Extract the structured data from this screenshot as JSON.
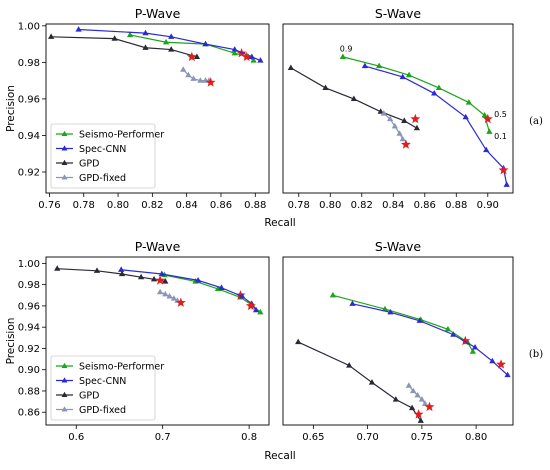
{
  "figure": {
    "panel_labels": {
      "top": "(a)",
      "bottom": "(b)"
    }
  },
  "series_styles": [
    {
      "name": "Seismo-Performer",
      "color": "#1aa51a",
      "marker": "triangle"
    },
    {
      "name": "Spec-CNN",
      "color": "#2b2bd1",
      "marker": "triangle"
    },
    {
      "name": "GPD",
      "color": "#2a2a36",
      "marker": "triangle"
    },
    {
      "name": "GPD-fixed",
      "color": "#8a95b8",
      "marker": "triangle"
    }
  ],
  "highlight": {
    "marker": "star",
    "color": "#e21d1d"
  },
  "chart_data": [
    {
      "id": "a-p",
      "type": "line",
      "title": "P-Wave",
      "xlabel": "",
      "ylabel": "Precision",
      "xlim": [
        0.758,
        0.888
      ],
      "ylim": [
        0.9085,
        1.001
      ],
      "xticks": [
        "0.76",
        "0.78",
        "0.80",
        "0.82",
        "0.84",
        "0.86",
        "0.88"
      ],
      "xtick_values": [
        0.76,
        0.78,
        0.8,
        0.82,
        0.84,
        0.86,
        0.88
      ],
      "yticks": [
        "0.92",
        "0.94",
        "0.96",
        "0.98",
        "1.00"
      ],
      "ytick_values": [
        0.92,
        0.94,
        0.96,
        0.98,
        1.0
      ],
      "legend": null,
      "series": [
        {
          "name": "Seismo-Performer",
          "x": [
            0.807,
            0.828,
            0.851,
            0.868,
            0.876,
            0.879
          ],
          "y": [
            0.995,
            0.991,
            0.99,
            0.985,
            0.983,
            0.981
          ],
          "highlight_x": 0.872,
          "highlight_y": 0.985
        },
        {
          "name": "Spec-CNN",
          "x": [
            0.777,
            0.816,
            0.831,
            0.851,
            0.868,
            0.878,
            0.883
          ],
          "y": [
            0.998,
            0.996,
            0.994,
            0.99,
            0.987,
            0.983,
            0.981
          ],
          "highlight_x": 0.875,
          "highlight_y": 0.983
        },
        {
          "name": "GPD",
          "x": [
            0.761,
            0.798,
            0.816,
            0.831,
            0.846
          ],
          "y": [
            0.994,
            0.993,
            0.988,
            0.987,
            0.983
          ],
          "highlight_x": 0.843,
          "highlight_y": 0.983
        },
        {
          "name": "GPD-fixed",
          "x": [
            0.838,
            0.841,
            0.844,
            0.848,
            0.851,
            0.853
          ],
          "y": [
            0.976,
            0.973,
            0.971,
            0.97,
            0.97,
            0.97
          ],
          "highlight_x": 0.854,
          "highlight_y": 0.969
        }
      ]
    },
    {
      "id": "a-s",
      "type": "line",
      "title": "S-Wave",
      "xlabel": "",
      "ylabel": "",
      "xlim": [
        0.77,
        0.916
      ],
      "ylim": [
        0.9085,
        1.001
      ],
      "xticks": [
        "0.78",
        "0.80",
        "0.82",
        "0.84",
        "0.86",
        "0.88",
        "0.90"
      ],
      "xtick_values": [
        0.78,
        0.8,
        0.82,
        0.84,
        0.86,
        0.88,
        0.9
      ],
      "yticks": [],
      "ytick_values": [],
      "legend": null,
      "annotations": [
        {
          "text": "0.9",
          "x": 0.806,
          "y": 0.986
        },
        {
          "text": "0.5",
          "x": 0.904,
          "y": 0.95
        },
        {
          "text": "0.1",
          "x": 0.904,
          "y": 0.938
        }
      ],
      "series": [
        {
          "name": "Seismo-Performer",
          "x": [
            0.808,
            0.831,
            0.85,
            0.869,
            0.888,
            0.898,
            0.901
          ],
          "y": [
            0.983,
            0.978,
            0.973,
            0.966,
            0.958,
            0.951,
            0.942
          ],
          "highlight_x": 0.9,
          "highlight_y": 0.949
        },
        {
          "name": "Spec-CNN",
          "x": [
            0.822,
            0.846,
            0.866,
            0.886,
            0.899,
            0.91,
            0.912
          ],
          "y": [
            0.978,
            0.972,
            0.963,
            0.95,
            0.932,
            0.922,
            0.913
          ],
          "highlight_x": 0.91,
          "highlight_y": 0.921
        },
        {
          "name": "GPD",
          "x": [
            0.775,
            0.797,
            0.815,
            0.832,
            0.847,
            0.855
          ],
          "y": [
            0.977,
            0.966,
            0.96,
            0.953,
            0.948,
            0.944
          ],
          "highlight_x": 0.854,
          "highlight_y": 0.949
        },
        {
          "name": "GPD-fixed",
          "x": [
            0.834,
            0.838,
            0.841,
            0.844,
            0.846
          ],
          "y": [
            0.952,
            0.949,
            0.945,
            0.941,
            0.938
          ],
          "highlight_x": 0.848,
          "highlight_y": 0.935
        }
      ]
    },
    {
      "id": "b-p",
      "type": "line",
      "title": "P-Wave",
      "xlabel": "",
      "ylabel": "Precision",
      "xlim": [
        0.565,
        0.823
      ],
      "ylim": [
        0.848,
        1.006
      ],
      "xticks": [
        "0.6",
        "0.7",
        "0.8"
      ],
      "xtick_values": [
        0.6,
        0.7,
        0.8
      ],
      "yticks": [
        "0.86",
        "0.88",
        "0.90",
        "0.92",
        "0.94",
        "0.96",
        "0.98",
        "1.00"
      ],
      "ytick_values": [
        0.86,
        0.88,
        0.9,
        0.92,
        0.94,
        0.96,
        0.98,
        1.0
      ],
      "legend": "lower left",
      "series": [
        {
          "name": "Seismo-Performer",
          "x": [
            0.702,
            0.738,
            0.764,
            0.79,
            0.803,
            0.813
          ],
          "y": [
            0.989,
            0.983,
            0.976,
            0.968,
            0.961,
            0.954
          ],
          "highlight_x": 0.79,
          "highlight_y": 0.97
        },
        {
          "name": "Spec-CNN",
          "x": [
            0.652,
            0.699,
            0.741,
            0.768,
            0.792,
            0.803,
            0.808
          ],
          "y": [
            0.994,
            0.99,
            0.984,
            0.977,
            0.969,
            0.962,
            0.956
          ],
          "highlight_x": 0.802,
          "highlight_y": 0.96
        },
        {
          "name": "GPD",
          "x": [
            0.578,
            0.624,
            0.653,
            0.675,
            0.69,
            0.703
          ],
          "y": [
            0.995,
            0.993,
            0.99,
            0.987,
            0.985,
            0.983
          ],
          "highlight_x": 0.697,
          "highlight_y": 0.984
        },
        {
          "name": "GPD-fixed",
          "x": [
            0.697,
            0.703,
            0.708,
            0.713,
            0.717
          ],
          "y": [
            0.973,
            0.971,
            0.969,
            0.967,
            0.965
          ],
          "highlight_x": 0.721,
          "highlight_y": 0.963
        }
      ]
    },
    {
      "id": "b-s",
      "type": "line",
      "title": "S-Wave",
      "xlabel": "",
      "ylabel": "",
      "xlim": [
        0.622,
        0.834
      ],
      "ylim": [
        0.848,
        1.006
      ],
      "xticks": [
        "0.65",
        "0.70",
        "0.75",
        "0.80"
      ],
      "xtick_values": [
        0.65,
        0.7,
        0.75,
        0.8
      ],
      "yticks": [],
      "ytick_values": [],
      "legend": null,
      "series": [
        {
          "name": "Seismo-Performer",
          "x": [
            0.668,
            0.716,
            0.749,
            0.774,
            0.792,
            0.797
          ],
          "y": [
            0.97,
            0.957,
            0.947,
            0.938,
            0.926,
            0.917
          ],
          "highlight_x": 0.79,
          "highlight_y": 0.927
        },
        {
          "name": "Spec-CNN",
          "x": [
            0.686,
            0.721,
            0.748,
            0.779,
            0.799,
            0.815,
            0.829
          ],
          "y": [
            0.962,
            0.954,
            0.946,
            0.933,
            0.921,
            0.908,
            0.895
          ],
          "highlight_x": 0.823,
          "highlight_y": 0.905
        },
        {
          "name": "GPD",
          "x": [
            0.636,
            0.683,
            0.704,
            0.726,
            0.741,
            0.749
          ],
          "y": [
            0.926,
            0.904,
            0.888,
            0.872,
            0.864,
            0.852
          ],
          "highlight_x": 0.747,
          "highlight_y": 0.858
        },
        {
          "name": "GPD-fixed",
          "x": [
            0.738,
            0.742,
            0.746,
            0.75,
            0.753
          ],
          "y": [
            0.885,
            0.88,
            0.876,
            0.872,
            0.868
          ],
          "highlight_x": 0.757,
          "highlight_y": 0.865
        }
      ]
    }
  ],
  "xlabel_common": "Recall",
  "legend_entries": [
    "Seismo-Performer",
    "Spec-CNN",
    "GPD",
    "GPD-fixed"
  ]
}
